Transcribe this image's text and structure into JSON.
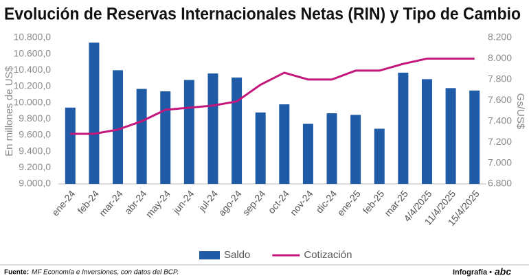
{
  "chart_data": {
    "type": "bar",
    "title": "Evolución de Reservas Internacionales Netas (RIN) y Tipo de Cambio",
    "categories": [
      "ene-24",
      "feb-24",
      "mar-24",
      "abr-24",
      "may-24",
      "jun-24",
      "jul-24",
      "ago-24",
      "sep-24",
      "oct-24",
      "nov-24",
      "dic-24",
      "ene-25",
      "feb-25",
      "mar-25",
      "4/4/2025",
      "11/4/2025",
      "15/4/2025"
    ],
    "series": [
      {
        "name": "Saldo",
        "type": "bar",
        "color": "#1f5ba6",
        "values": [
          9940,
          10740,
          10400,
          10170,
          10140,
          10280,
          10360,
          10310,
          9880,
          9980,
          9740,
          9870,
          9850,
          9680,
          10370,
          10290,
          10180,
          10150
        ]
      },
      {
        "name": "Cotización",
        "type": "line",
        "axis": "y2",
        "color": "#c4177c",
        "values": [
          7280,
          7280,
          7320,
          7400,
          7510,
          7530,
          7550,
          7590,
          7750,
          7865,
          7800,
          7800,
          7885,
          7885,
          7950,
          8000,
          8000,
          8000
        ]
      }
    ],
    "ylabel": "En millones de US$",
    "y2label": "Gs/US$",
    "ylim": [
      9000,
      10800
    ],
    "yticks": [
      {
        "value": 9000,
        "label": "9.000,0"
      },
      {
        "value": 9200,
        "label": "9.200,0"
      },
      {
        "value": 9400,
        "label": "9.400,0"
      },
      {
        "value": 9600,
        "label": "9.600,0"
      },
      {
        "value": 9800,
        "label": "9.800,0"
      },
      {
        "value": 10000,
        "label": "10.000,0"
      },
      {
        "value": 10200,
        "label": "10.200,0"
      },
      {
        "value": 10400,
        "label": "10.400,0"
      },
      {
        "value": 10600,
        "label": "10.600,0"
      },
      {
        "value": 10800,
        "label": "10.800,0"
      }
    ],
    "y2lim": [
      6800,
      8200
    ],
    "y2ticks": [
      {
        "value": 6800,
        "label": "6.800"
      },
      {
        "value": 7000,
        "label": "7.000"
      },
      {
        "value": 7200,
        "label": "7.200"
      },
      {
        "value": 7400,
        "label": "7.400"
      },
      {
        "value": 7600,
        "label": "7.600"
      },
      {
        "value": 7800,
        "label": "7.800"
      },
      {
        "value": 8000,
        "label": "8.000"
      },
      {
        "value": 8200,
        "label": "8.200"
      }
    ],
    "grid": false,
    "legend": "bottom"
  },
  "footer": {
    "source_label": "Fuente:",
    "source": "MF Economía e Inversiones, con datos del BCP.",
    "credit": "Infografía •",
    "logo": "abc"
  }
}
